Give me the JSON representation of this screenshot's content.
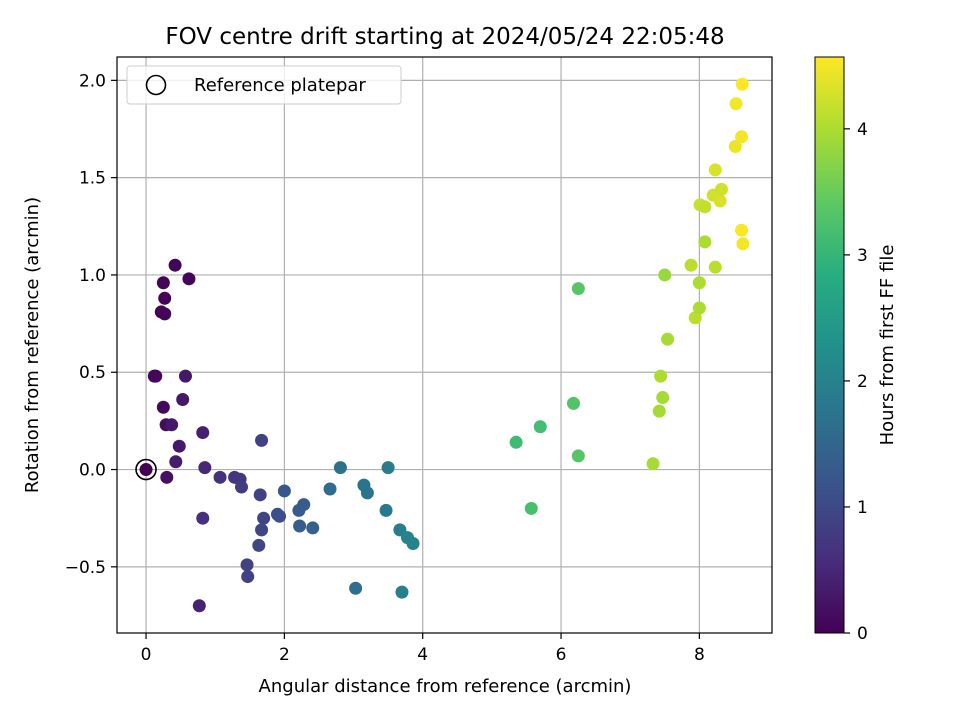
{
  "chart_data": {
    "type": "scatter",
    "title": "FOV centre drift starting at 2024/05/24 22:05:48",
    "xlabel": "Angular distance from reference (arcmin)",
    "ylabel": "Rotation from reference (arcmin)",
    "colorbar_label": "Hours from first FF file",
    "xlim": [
      -0.42,
      9.05
    ],
    "ylim": [
      -0.84,
      2.12
    ],
    "xticks": [
      0,
      2,
      4,
      6,
      8
    ],
    "xtick_labels": [
      "0",
      "2",
      "4",
      "6",
      "8"
    ],
    "yticks": [
      -0.5,
      0.0,
      0.5,
      1.0,
      1.5,
      2.0
    ],
    "ytick_labels": [
      "−0.5",
      "0.0",
      "0.5",
      "1.0",
      "1.5",
      "2.0"
    ],
    "clim": [
      0,
      4.57
    ],
    "cticks": [
      0,
      1,
      2,
      3,
      4
    ],
    "ctick_labels": [
      "0",
      "1",
      "2",
      "3",
      "4"
    ],
    "colormap": "viridis",
    "grid": true,
    "legend": {
      "label": "Reference platepar",
      "loc": "upper-left"
    },
    "reference_point": [
      0,
      0
    ],
    "points": [
      [
        0.0,
        0.0,
        0.0
      ],
      [
        0.42,
        1.05,
        0.05
      ],
      [
        0.25,
        0.96,
        0.05
      ],
      [
        0.62,
        0.98,
        0.07
      ],
      [
        0.27,
        0.88,
        0.05
      ],
      [
        0.22,
        0.81,
        0.05
      ],
      [
        0.27,
        0.8,
        0.05
      ],
      [
        0.14,
        0.48,
        0.08
      ],
      [
        0.12,
        0.48,
        0.08
      ],
      [
        0.57,
        0.48,
        0.3
      ],
      [
        0.25,
        0.32,
        0.1
      ],
      [
        0.53,
        0.36,
        0.3
      ],
      [
        0.29,
        0.23,
        0.15
      ],
      [
        0.37,
        0.23,
        0.3
      ],
      [
        0.82,
        0.19,
        0.4
      ],
      [
        0.48,
        0.12,
        0.3
      ],
      [
        0.43,
        0.04,
        0.35
      ],
      [
        0.3,
        -0.04,
        0.2
      ],
      [
        0.85,
        0.01,
        0.5
      ],
      [
        1.07,
        -0.04,
        0.65
      ],
      [
        1.28,
        -0.04,
        0.7
      ],
      [
        1.36,
        -0.05,
        0.72
      ],
      [
        1.38,
        -0.09,
        0.8
      ],
      [
        0.82,
        -0.25,
        0.6
      ],
      [
        0.77,
        -0.7,
        0.45
      ],
      [
        1.67,
        0.15,
        0.9
      ],
      [
        1.65,
        -0.13,
        0.9
      ],
      [
        1.7,
        -0.25,
        0.95
      ],
      [
        1.67,
        -0.31,
        0.95
      ],
      [
        1.63,
        -0.39,
        0.95
      ],
      [
        1.46,
        -0.49,
        0.9
      ],
      [
        1.47,
        -0.55,
        0.9
      ],
      [
        1.9,
        -0.23,
        1.1
      ],
      [
        1.93,
        -0.24,
        1.1
      ],
      [
        2.0,
        -0.11,
        1.25
      ],
      [
        2.21,
        -0.21,
        1.3
      ],
      [
        2.28,
        -0.18,
        1.3
      ],
      [
        2.22,
        -0.29,
        1.35
      ],
      [
        2.41,
        -0.3,
        1.4
      ],
      [
        2.66,
        -0.1,
        1.6
      ],
      [
        2.81,
        0.01,
        1.7
      ],
      [
        3.03,
        -0.61,
        1.65
      ],
      [
        3.15,
        -0.08,
        1.75
      ],
      [
        3.2,
        -0.12,
        1.75
      ],
      [
        3.47,
        -0.21,
        1.85
      ],
      [
        3.5,
        0.01,
        1.9
      ],
      [
        3.67,
        -0.31,
        1.95
      ],
      [
        3.78,
        -0.35,
        2.0
      ],
      [
        3.86,
        -0.38,
        2.0
      ],
      [
        3.7,
        -0.63,
        1.95
      ],
      [
        5.35,
        0.14,
        3.1
      ],
      [
        5.7,
        0.22,
        3.15
      ],
      [
        5.57,
        -0.2,
        3.2
      ],
      [
        6.18,
        0.34,
        3.3
      ],
      [
        6.25,
        0.07,
        3.35
      ],
      [
        6.25,
        0.93,
        3.35
      ],
      [
        7.33,
        0.03,
        3.95
      ],
      [
        7.42,
        0.3,
        3.95
      ],
      [
        7.47,
        0.37,
        3.95
      ],
      [
        7.44,
        0.48,
        4.0
      ],
      [
        7.54,
        0.67,
        3.95
      ],
      [
        7.5,
        1.0,
        3.85
      ],
      [
        7.88,
        1.05,
        4.1
      ],
      [
        7.94,
        0.78,
        4.1
      ],
      [
        8.0,
        0.83,
        4.0
      ],
      [
        8.0,
        0.96,
        4.0
      ],
      [
        8.08,
        1.17,
        4.0
      ],
      [
        8.23,
        1.04,
        4.1
      ],
      [
        8.01,
        1.36,
        4.2
      ],
      [
        8.08,
        1.35,
        4.15
      ],
      [
        8.2,
        1.41,
        4.25
      ],
      [
        8.3,
        1.38,
        4.3
      ],
      [
        8.32,
        1.44,
        4.25
      ],
      [
        8.23,
        1.54,
        4.3
      ],
      [
        8.52,
        1.66,
        4.45
      ],
      [
        8.61,
        1.71,
        4.5
      ],
      [
        8.53,
        1.88,
        4.5
      ],
      [
        8.62,
        1.98,
        4.55
      ],
      [
        8.61,
        1.23,
        4.55
      ],
      [
        8.63,
        1.16,
        4.5
      ]
    ]
  }
}
